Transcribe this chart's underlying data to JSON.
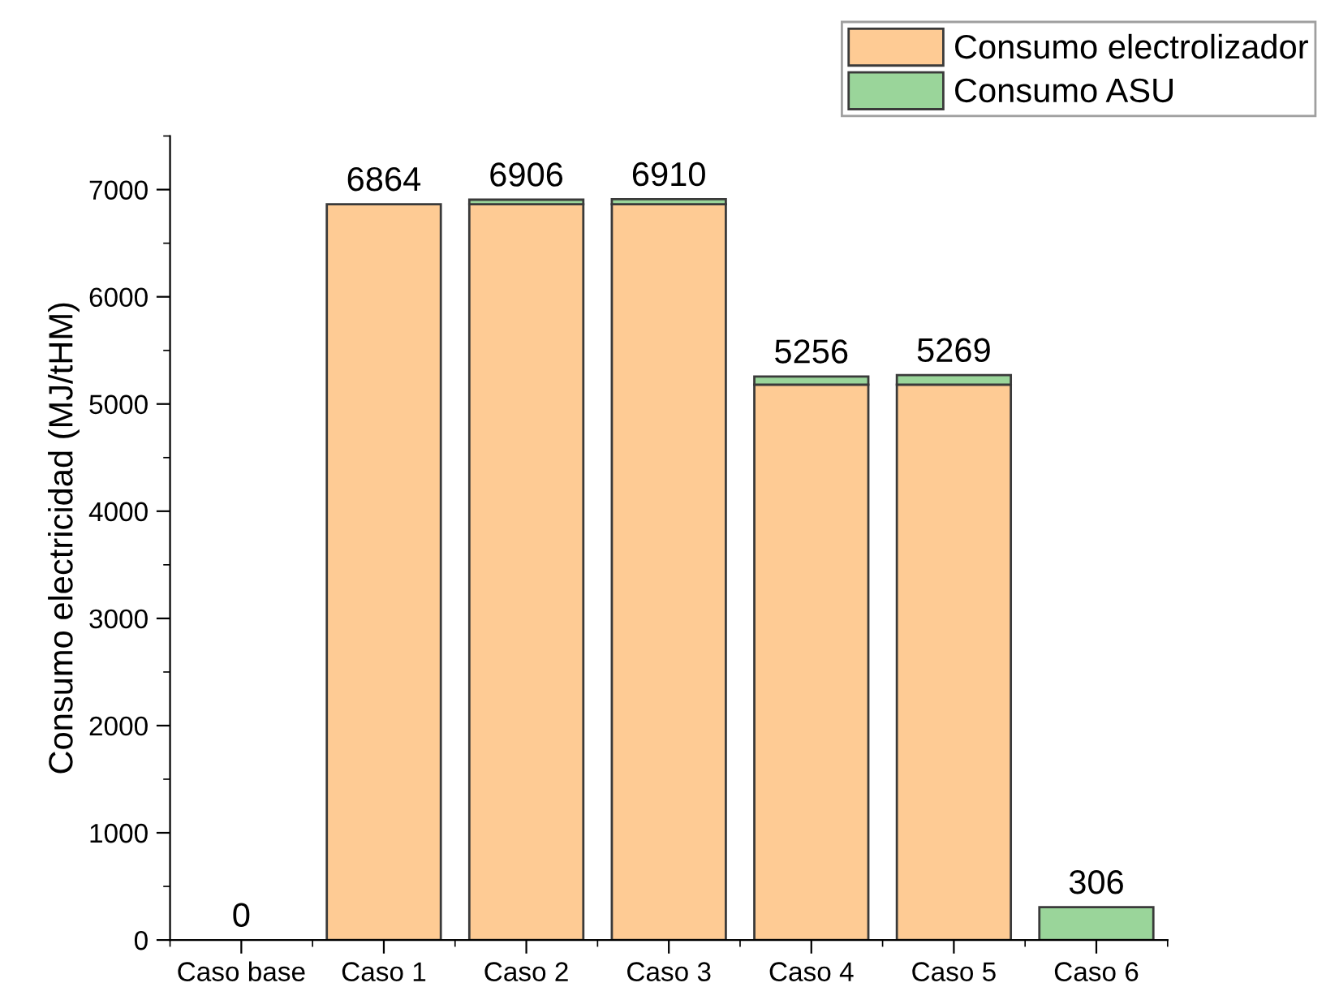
{
  "chart_data": {
    "type": "bar",
    "stacked": true,
    "ylabel": "Consumo electricidad (MJ/tHM)",
    "categories": [
      "Caso base",
      "Caso 1",
      "Caso 2",
      "Caso 3",
      "Caso 4",
      "Caso 5",
      "Caso 6"
    ],
    "series": [
      {
        "name": "Consumo electrolizador",
        "color": "#fecb94",
        "values": [
          null,
          6864,
          6864,
          6864,
          5180,
          5180,
          null
        ]
      },
      {
        "name": "Consumo ASU",
        "color": "#9ad59a",
        "values": [
          null,
          null,
          42,
          46,
          76,
          89,
          306
        ]
      }
    ],
    "totals": [
      "0",
      "6864",
      "6906",
      "6910",
      "5256",
      "5269",
      "306"
    ],
    "ylim": [
      0,
      7500
    ],
    "yticks": [
      0,
      1000,
      2000,
      3000,
      4000,
      5000,
      6000,
      7000
    ],
    "grid": false,
    "legend": "top right"
  }
}
